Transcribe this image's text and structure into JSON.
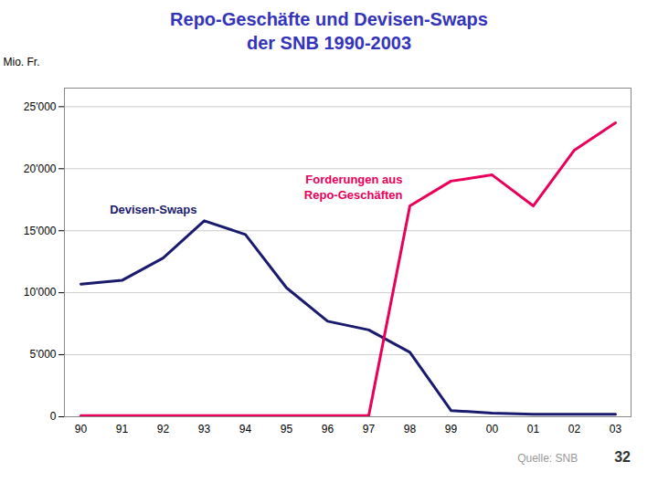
{
  "chart_data": {
    "type": "line",
    "title": "Repo-Geschäfte und Devisen-Swaps",
    "subtitle": "der SNB 1990-2003",
    "ylabel": "Mio. Fr.",
    "caption": "Quelle: SNB",
    "annotations": [
      "32"
    ],
    "categories": [
      "90",
      "91",
      "92",
      "93",
      "94",
      "95",
      "96",
      "97",
      "98",
      "99",
      "00",
      "01",
      "02",
      "03"
    ],
    "series": [
      {
        "name": "Devisen-Swaps",
        "color": "#1a1a6e",
        "values": [
          10700,
          11000,
          12800,
          15800,
          14700,
          10400,
          7700,
          7000,
          5200,
          500,
          300,
          200,
          200,
          200
        ]
      },
      {
        "name": "Forderungen aus\nRepo-Geschäften",
        "color": "#e8005a",
        "values": [
          100,
          100,
          100,
          100,
          100,
          100,
          100,
          100,
          17000,
          19000,
          19500,
          17000,
          21500,
          23700
        ]
      }
    ],
    "ylim": [
      0,
      26500
    ],
    "yticks": [
      0,
      {
        "value": 5000,
        "label": "5'000"
      },
      {
        "value": 10000,
        "label": "10'000"
      },
      {
        "value": 15000,
        "label": "15'000"
      },
      {
        "value": 20000,
        "label": "20'000"
      },
      {
        "value": 25000,
        "label": "25'000"
      }
    ],
    "grid": true
  }
}
